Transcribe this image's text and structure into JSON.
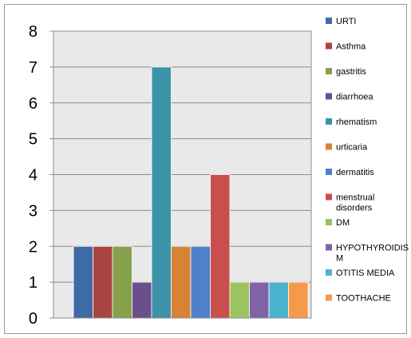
{
  "chart_data": {
    "type": "bar",
    "title": "",
    "xlabel": "",
    "ylabel": "",
    "ylim": [
      0,
      8
    ],
    "yticks": [
      "0",
      "1",
      "2",
      "3",
      "4",
      "5",
      "6",
      "7",
      "8"
    ],
    "grid": true,
    "legend_position": "right",
    "series": [
      {
        "name": "URTI",
        "value": 2,
        "color": "#3F6AA6"
      },
      {
        "name": "Asthma",
        "value": 2,
        "color": "#A94442"
      },
      {
        "name": "gastritis",
        "value": 2,
        "color": "#86A14B"
      },
      {
        "name": "diarrhoea",
        "value": 1,
        "color": "#6B4F8C"
      },
      {
        "name": "rhematism",
        "value": 7,
        "color": "#3C93A8"
      },
      {
        "name": "urticaria",
        "value": 2,
        "color": "#D88236"
      },
      {
        "name": "dermatitis",
        "value": 2,
        "color": "#4F81CB"
      },
      {
        "name": "menstrual disorders",
        "legend_lines": [
          "menstrual",
          "disorders"
        ],
        "value": 4,
        "color": "#C84F4D"
      },
      {
        "name": "DM",
        "value": 1,
        "color": "#9BC460"
      },
      {
        "name": "HYPOTHYROIDISM",
        "legend_lines": [
          "HYPOTHYROIDIS",
          "M"
        ],
        "value": 1,
        "color": "#8062A6"
      },
      {
        "name": "OTITIS MEDIA",
        "value": 1,
        "color": "#4BB3CE"
      },
      {
        "name": "TOOTHACHE",
        "value": 1,
        "color": "#F59A48"
      }
    ]
  }
}
